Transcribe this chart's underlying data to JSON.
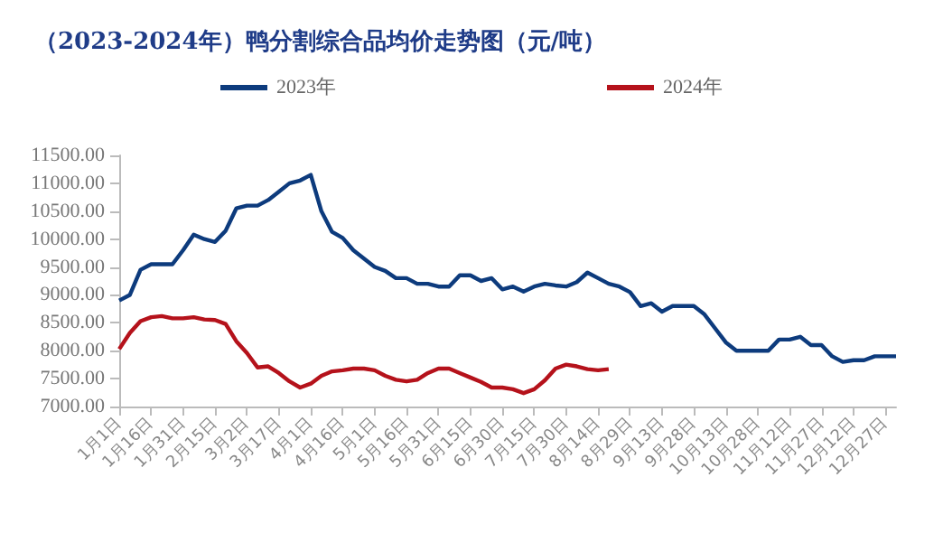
{
  "chart_data": {
    "type": "line",
    "title": "（2023-2024年）鸭分割综合品均价走势图（元/吨）",
    "categories": [
      "1月1日",
      null,
      null,
      "1月16日",
      null,
      null,
      "1月31日",
      null,
      null,
      "2月15日",
      null,
      null,
      "3月2日",
      null,
      null,
      "3月17日",
      null,
      null,
      "4月1日",
      null,
      null,
      "4月16日",
      null,
      null,
      "5月1日",
      null,
      null,
      "5月16日",
      null,
      null,
      "5月31日",
      null,
      null,
      "6月15日",
      null,
      null,
      "6月30日",
      null,
      null,
      "7月15日",
      null,
      null,
      "7月30日",
      null,
      null,
      "8月14日",
      null,
      null,
      "8月29日",
      null,
      null,
      "9月13日",
      null,
      null,
      "9月28日",
      null,
      null,
      "10月13日",
      null,
      null,
      "10月28日",
      null,
      null,
      "11月12日",
      null,
      null,
      "11月27日",
      null,
      null,
      "12月12日",
      null,
      null,
      "12月27日",
      null
    ],
    "series": [
      {
        "name": "2023年",
        "color": "#0d3b7d",
        "values": [
          8900,
          9000,
          9450,
          9550,
          9550,
          9550,
          9800,
          10080,
          10000,
          9950,
          10150,
          10550,
          10600,
          10600,
          10700,
          10850,
          11000,
          11050,
          11150,
          10500,
          10130,
          10020,
          9800,
          9650,
          9500,
          9430,
          9300,
          9300,
          9200,
          9200,
          9150,
          9150,
          9350,
          9350,
          9250,
          9300,
          9100,
          9150,
          9060,
          9150,
          9200,
          9170,
          9150,
          9230,
          9400,
          9300,
          9200,
          9150,
          9050,
          8800,
          8850,
          8700,
          8800,
          8800,
          8800,
          8650,
          8400,
          8150,
          8000,
          8000,
          8000,
          8000,
          8200,
          8200,
          8250,
          8100,
          8100,
          7900,
          7800,
          7830,
          7830,
          7900,
          7900,
          7900
        ]
      },
      {
        "name": "2024年",
        "color": "#b5121b",
        "values": [
          8030,
          8320,
          8530,
          8600,
          8620,
          8580,
          8580,
          8600,
          8560,
          8550,
          8480,
          8170,
          7960,
          7700,
          7720,
          7600,
          7450,
          7340,
          7410,
          7550,
          7630,
          7650,
          7680,
          7680,
          7650,
          7550,
          7480,
          7450,
          7480,
          7600,
          7680,
          7680,
          7600,
          7520,
          7440,
          7340,
          7340,
          7310,
          7240,
          7310,
          7470,
          7680,
          7750,
          7720,
          7670,
          7650,
          7670,
          null,
          null,
          null,
          null,
          null,
          null,
          null,
          null,
          null,
          null,
          null,
          null,
          null,
          null,
          null,
          null,
          null,
          null,
          null,
          null,
          null,
          null,
          null,
          null,
          null,
          null,
          null
        ]
      }
    ],
    "ylim": [
      7000,
      11500
    ],
    "yticks": [
      {
        "value": 7000,
        "label": "7000.00"
      },
      {
        "value": 7500,
        "label": "7500.00"
      },
      {
        "value": 8000,
        "label": "8000.00"
      },
      {
        "value": 8500,
        "label": "8500.00"
      },
      {
        "value": 9000,
        "label": "9000.00"
      },
      {
        "value": 9500,
        "label": "9500.00"
      },
      {
        "value": 10000,
        "label": "10000.00"
      },
      {
        "value": 10500,
        "label": "10500.00"
      },
      {
        "value": 11000,
        "label": "11000.00"
      },
      {
        "value": 11500,
        "label": "11500.00"
      }
    ],
    "grid": false,
    "legend": "top",
    "marker": "none"
  }
}
